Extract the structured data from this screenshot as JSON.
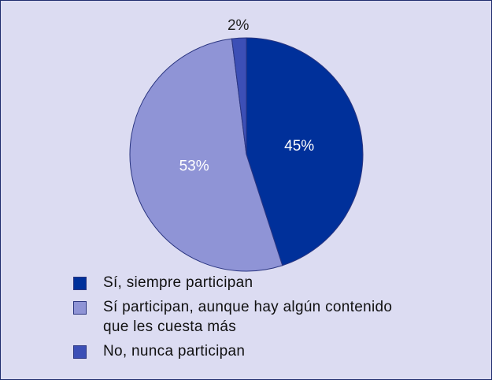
{
  "chart_data": {
    "type": "pie",
    "title": "",
    "slices": [
      {
        "label": "Sí, siempre participan",
        "value": 45,
        "value_label": "45%",
        "color": "#00309a",
        "text_color": "#ffffff"
      },
      {
        "label": "Sí participan, aunque hay algún contenido\nque les cuesta más",
        "value": 53,
        "value_label": "53%",
        "color": "#8f94d6",
        "text_color": "#ffffff"
      },
      {
        "label": "No, nunca participan",
        "value": 2,
        "value_label": "2%",
        "color": "#3c4fb6",
        "text_color": "#222222"
      }
    ],
    "legend_position": "bottom-left",
    "start_angle": "12 o'clock",
    "direction": "clockwise"
  },
  "colors": {
    "background": "#dcdcf2",
    "border": "#1f2d6e",
    "slice_edge": "#2a3580"
  }
}
